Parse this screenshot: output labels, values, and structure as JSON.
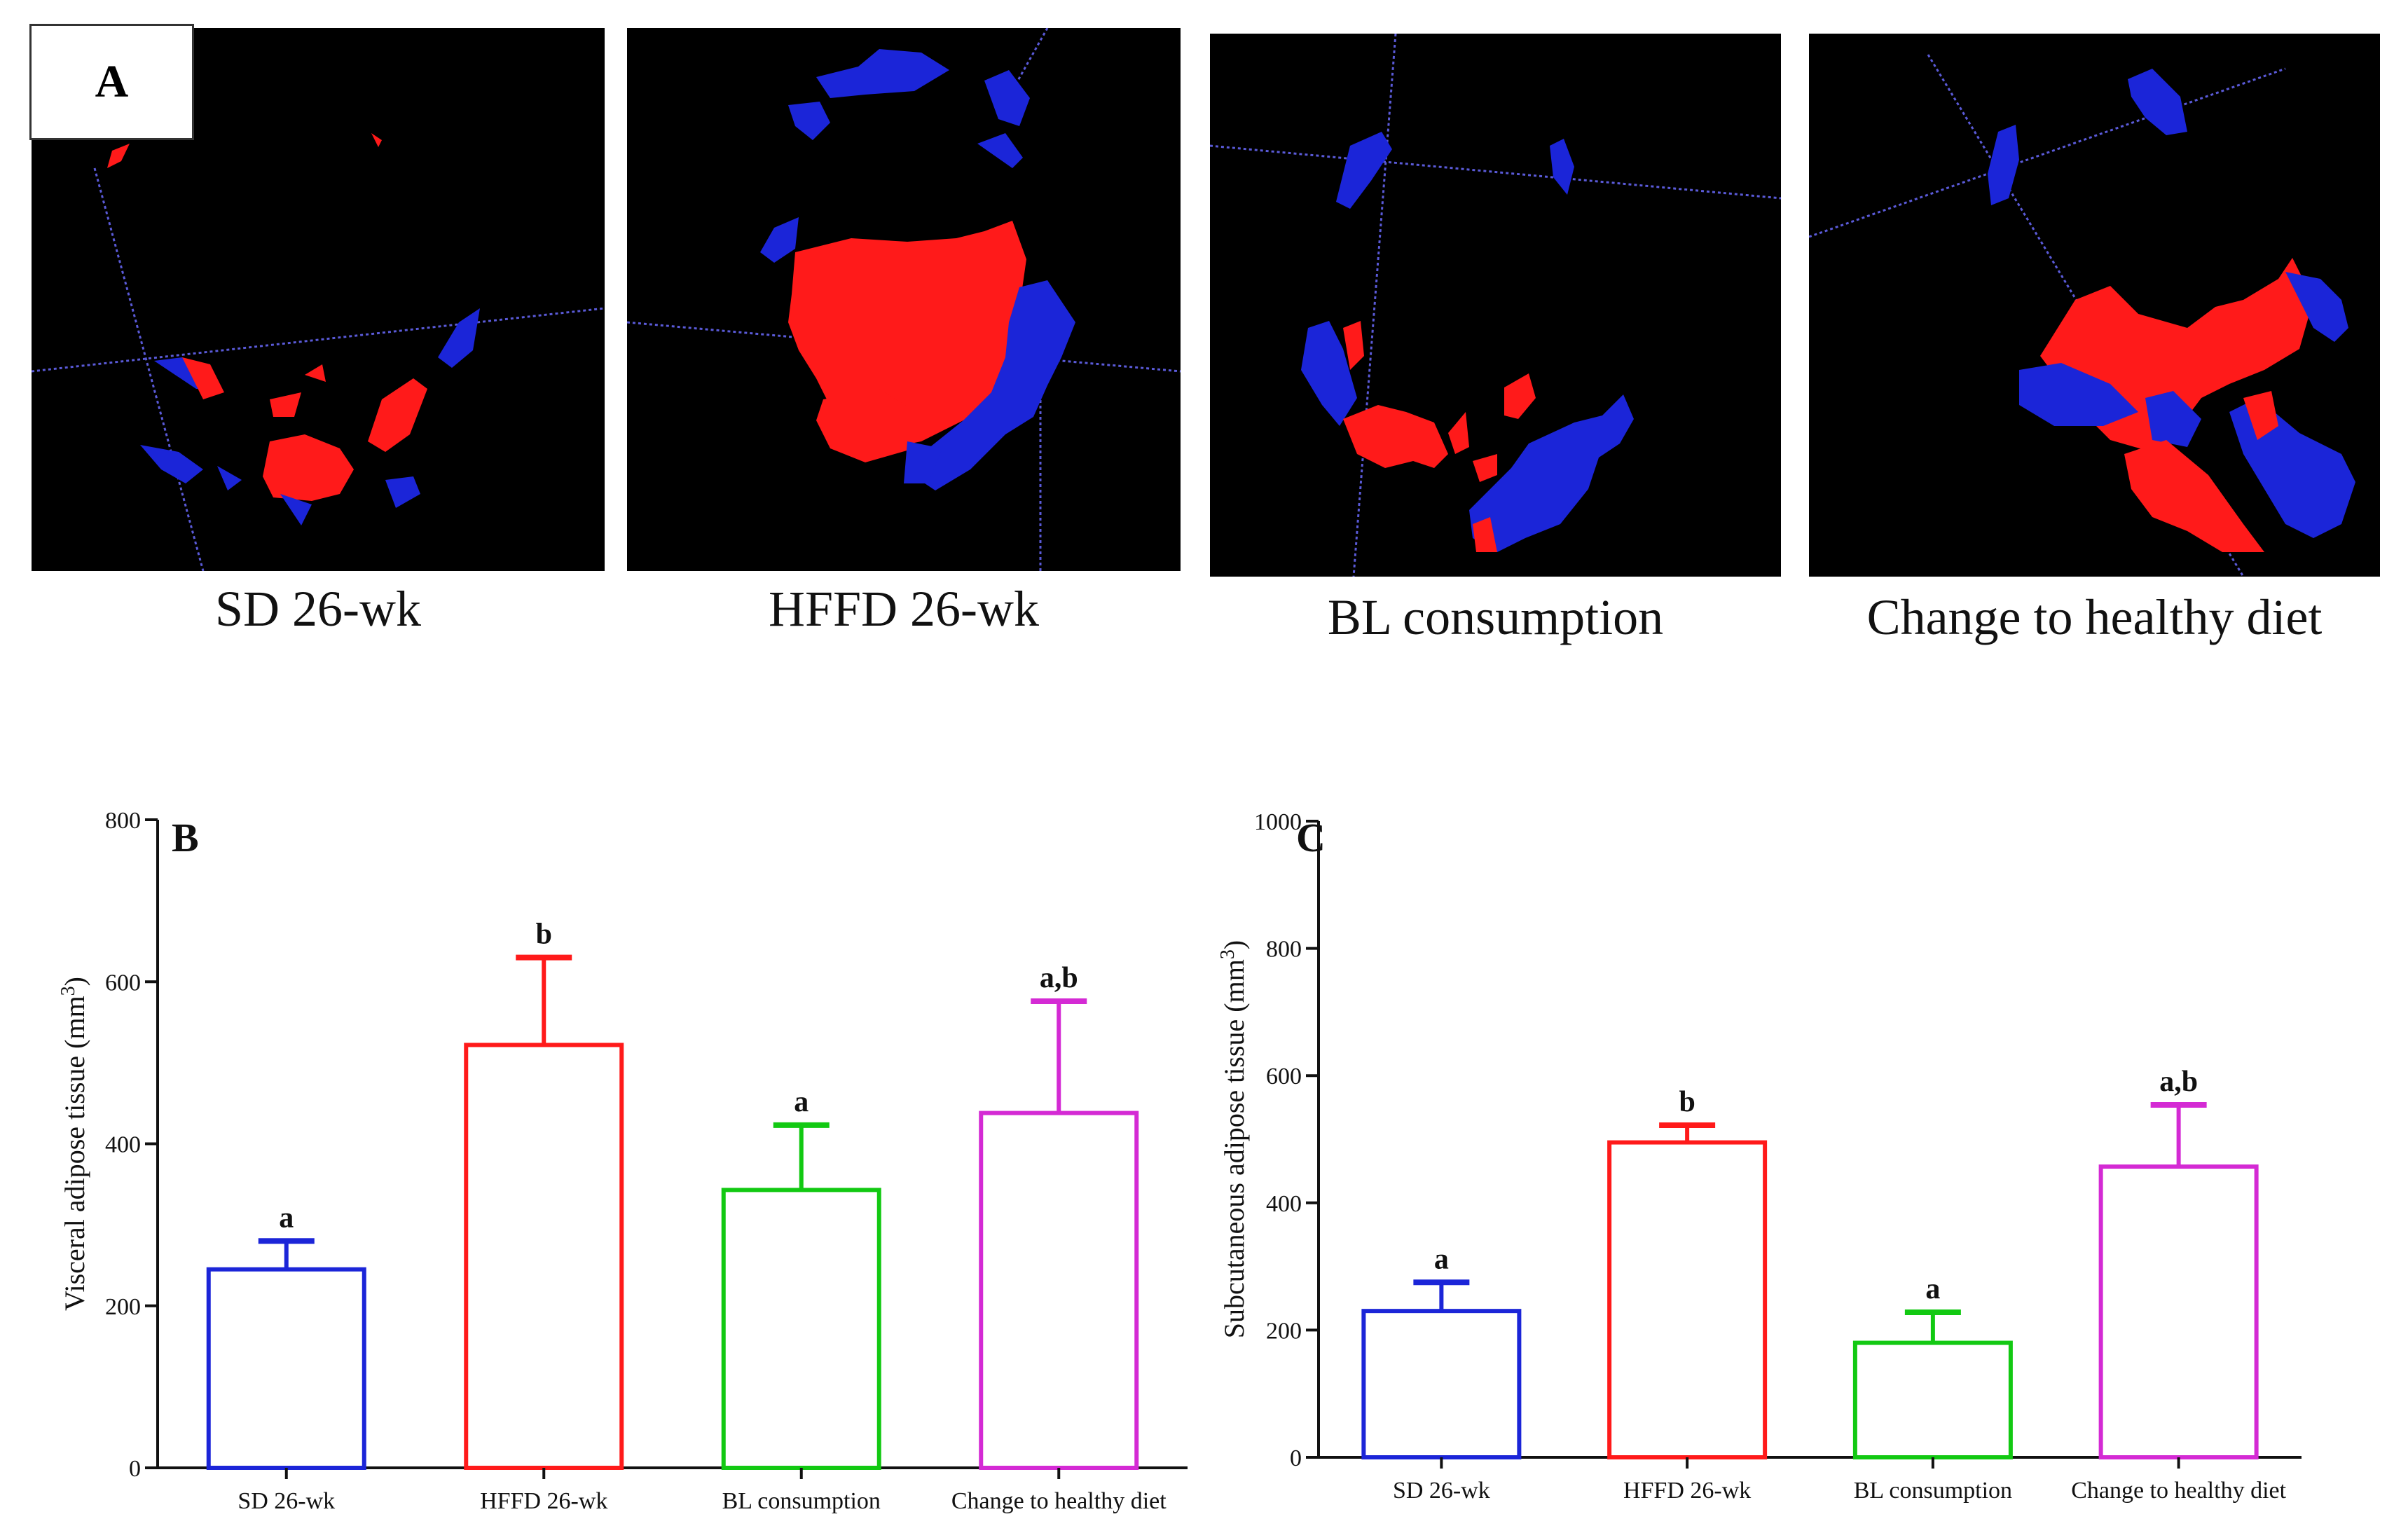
{
  "panel_a": {
    "label": "A",
    "captions": [
      "SD 26-wk",
      "HFFD 26-wk",
      "BL consumption",
      "Change to healthy diet"
    ],
    "colors": {
      "visceral": "#ff1a1a",
      "subcutaneous": "#1b25d8",
      "background": "#000000"
    }
  },
  "chart_data": [
    {
      "type": "bar",
      "panel_label": "B",
      "title": "",
      "xlabel": "",
      "ylabel": "Visceral adipose tissue (mm3)",
      "ylabel_base": "Visceral adipose tissue (mm",
      "ylabel_sup": "3",
      "ylabel_close": ")",
      "ylim": [
        0,
        800
      ],
      "yticks": [
        0,
        200,
        400,
        600,
        800
      ],
      "categories": [
        "SD 26-wk",
        "HFFD 26-wk",
        "BL consumption",
        "Change to healthy diet"
      ],
      "values": [
        245,
        522,
        343,
        438
      ],
      "errors": [
        35,
        108,
        80,
        138
      ],
      "sig_labels": [
        "a",
        "b",
        "a",
        "a,b"
      ],
      "colors": [
        "#1b25d8",
        "#ff1a1a",
        "#12c912",
        "#d42ad4"
      ]
    },
    {
      "type": "bar",
      "panel_label": "C",
      "title": "",
      "xlabel": "",
      "ylabel": "Subcutaneous adipose tissue (mm3)",
      "ylabel_base": "Subcutaneous adipose tissue (mm",
      "ylabel_sup": "3",
      "ylabel_close": ")",
      "ylim": [
        0,
        1000
      ],
      "yticks": [
        0,
        200,
        400,
        600,
        800,
        1000
      ],
      "categories": [
        "SD 26-wk",
        "HFFD 26-wk",
        "BL consumption",
        "Change to healthy diet"
      ],
      "values": [
        230,
        495,
        180,
        457
      ],
      "errors": [
        45,
        27,
        48,
        97
      ],
      "sig_labels": [
        "a",
        "b",
        "a",
        "a,b"
      ],
      "colors": [
        "#1b25d8",
        "#ff1a1a",
        "#12c912",
        "#d42ad4"
      ]
    }
  ]
}
